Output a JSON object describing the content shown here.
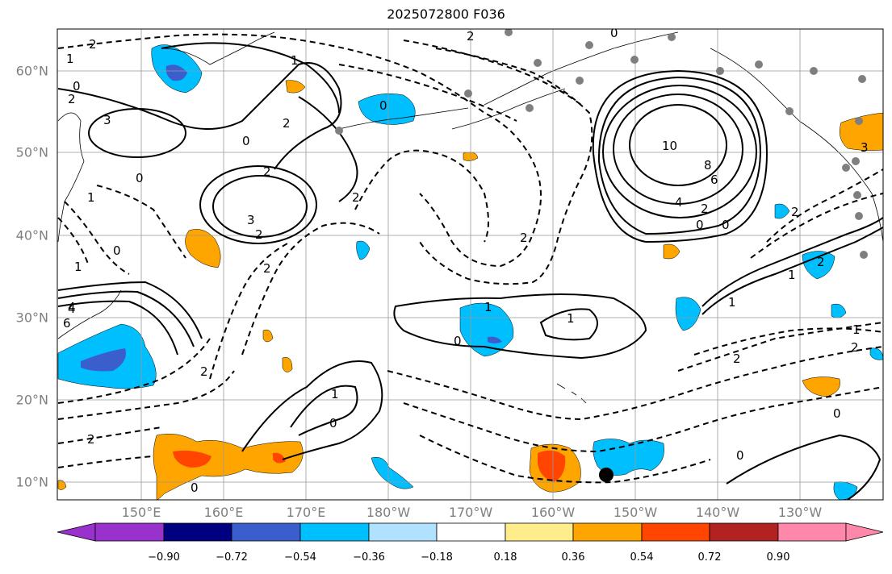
{
  "title": "2025072800 F036",
  "lat_labels": [
    {
      "text": "60°N",
      "lat": 60
    },
    {
      "text": "50°N",
      "lat": 50
    },
    {
      "text": "40°N",
      "lat": 40
    },
    {
      "text": "30°N",
      "lat": 30
    },
    {
      "text": "20°N",
      "lat": 20
    },
    {
      "text": "10°N",
      "lat": 10
    }
  ],
  "lon_labels": [
    {
      "text": "150°E",
      "lon": 150
    },
    {
      "text": "160°E",
      "lon": 160
    },
    {
      "text": "170°E",
      "lon": 170
    },
    {
      "text": "180°W",
      "lon": 180
    },
    {
      "text": "170°W",
      "lon": 190
    },
    {
      "text": "160°W",
      "lon": 200
    },
    {
      "text": "150°W",
      "lon": 210
    },
    {
      "text": "140°W",
      "lon": 220
    },
    {
      "text": "130°W",
      "lon": 230
    }
  ],
  "colorbar": {
    "ticks": [
      "−0.90",
      "−0.72",
      "−0.54",
      "−0.36",
      "−0.18",
      "0.18",
      "0.36",
      "0.54",
      "0.72",
      "0.90"
    ],
    "colors": [
      "#9932cc",
      "#000080",
      "#3a5fcd",
      "#00bfff",
      "#b0e2ff",
      "#ffffff",
      "#ffec8b",
      "#ffa500",
      "#ff4500",
      "#b22222",
      "#ff88aa"
    ]
  },
  "colors": {
    "positive_fill": "#ffa500",
    "strong_positive_fill": "#ff4500",
    "negative_fill": "#00bfff",
    "strong_negative_fill": "#3a5fcd",
    "grid": "#999999",
    "station": "#7f7f7f"
  },
  "contour_labels": [
    "2",
    "1",
    "0",
    "2",
    "3",
    "2",
    "0",
    "2",
    "1",
    "0",
    "4",
    "2",
    "0",
    "0",
    "1",
    "2",
    "0",
    "2",
    "10",
    "8",
    "6",
    "4",
    "2",
    "0",
    "0",
    "2",
    "1",
    "1",
    "1",
    "0",
    "2",
    "1",
    "2",
    "3",
    "1",
    "4",
    "6",
    "2",
    "0",
    "2",
    "1",
    "0",
    "2",
    "0",
    "2",
    "2",
    "1",
    "0",
    "3"
  ]
}
